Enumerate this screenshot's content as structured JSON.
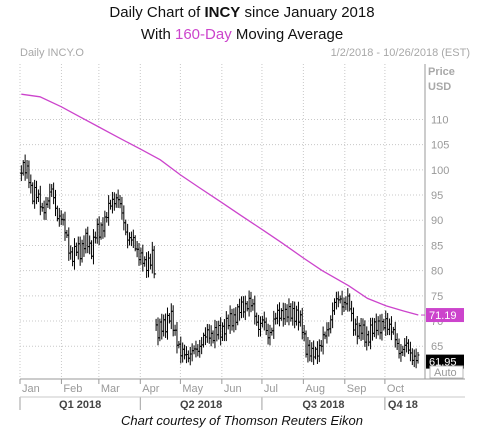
{
  "title": {
    "line1_pre": "Daily Chart of ",
    "line1_ticker": "INCY",
    "line1_post": " since January 2018",
    "line2_pre": "With ",
    "line2_highlight": "160-Day",
    "line2_post": " Moving Average"
  },
  "credit": "Chart courtesy of Thomson Reuters Eikon",
  "chart_data": {
    "type": "ohlc",
    "chart_label": "Daily INCY.O",
    "date_range": "1/2/2018 - 10/26/2018 (EST)",
    "axis_title": [
      "Price",
      "USD"
    ],
    "y_ticks": [
      110,
      105,
      100,
      95,
      90,
      85,
      80,
      75,
      70,
      65
    ],
    "ylim": [
      58.5,
      121
    ],
    "month_labels": [
      "Jan",
      "Feb",
      "Mar",
      "Apr",
      "May",
      "Jun",
      "Jul",
      "Aug",
      "Sep",
      "Oct"
    ],
    "quarter_labels": [
      "Q1 2018",
      "Q2 2018",
      "Q3 2018",
      "Q4 18"
    ],
    "auto_label": "Auto",
    "grid": true,
    "colors": {
      "price": "#000000",
      "moving_average": "#cc44cc",
      "grid": "#c8c8c8",
      "axis_text": "#999999"
    },
    "series": [
      {
        "name": "Daily INCY.O",
        "last_label": "61.95",
        "points": [
          [
            "2018-01-02",
            101
          ],
          [
            "2018-01-05",
            100
          ],
          [
            "2018-01-08",
            98
          ],
          [
            "2018-01-10",
            95
          ],
          [
            "2018-01-12",
            96
          ],
          [
            "2018-01-16",
            93
          ],
          [
            "2018-01-18",
            92
          ],
          [
            "2018-01-22",
            94
          ],
          [
            "2018-01-25",
            96
          ],
          [
            "2018-01-29",
            91
          ],
          [
            "2018-02-01",
            90
          ],
          [
            "2018-02-05",
            87
          ],
          [
            "2018-02-07",
            84
          ],
          [
            "2018-02-09",
            82
          ],
          [
            "2018-02-13",
            85
          ],
          [
            "2018-02-15",
            84
          ],
          [
            "2018-02-20",
            86
          ],
          [
            "2018-02-23",
            84
          ],
          [
            "2018-02-27",
            88
          ],
          [
            "2018-03-01",
            87
          ],
          [
            "2018-03-05",
            90
          ],
          [
            "2018-03-08",
            92
          ],
          [
            "2018-03-12",
            94
          ],
          [
            "2018-03-15",
            95
          ],
          [
            "2018-03-19",
            90
          ],
          [
            "2018-03-22",
            87
          ],
          [
            "2018-03-26",
            86
          ],
          [
            "2018-03-29",
            84
          ],
          [
            "2018-04-02",
            83
          ],
          [
            "2018-04-05",
            80
          ],
          [
            "2018-04-09",
            83
          ],
          [
            "2018-04-11",
            84
          ],
          [
            "2018-04-13",
            66
          ],
          [
            "2018-04-16",
            69
          ],
          [
            "2018-04-18",
            70
          ],
          [
            "2018-04-20",
            69
          ],
          [
            "2018-04-24",
            71
          ],
          [
            "2018-04-27",
            68
          ],
          [
            "2018-05-01",
            63
          ],
          [
            "2018-05-04",
            64
          ],
          [
            "2018-05-08",
            63
          ],
          [
            "2018-05-11",
            64
          ],
          [
            "2018-05-15",
            65
          ],
          [
            "2018-05-18",
            66
          ],
          [
            "2018-05-22",
            68
          ],
          [
            "2018-05-25",
            67
          ],
          [
            "2018-05-30",
            68
          ],
          [
            "2018-06-04",
            69
          ],
          [
            "2018-06-07",
            70
          ],
          [
            "2018-06-11",
            71
          ],
          [
            "2018-06-14",
            72
          ],
          [
            "2018-06-18",
            73
          ],
          [
            "2018-06-21",
            74
          ],
          [
            "2018-06-25",
            72
          ],
          [
            "2018-06-28",
            69
          ],
          [
            "2018-07-02",
            70
          ],
          [
            "2018-07-05",
            67
          ],
          [
            "2018-07-09",
            69
          ],
          [
            "2018-07-12",
            71
          ],
          [
            "2018-07-16",
            72
          ],
          [
            "2018-07-19",
            71
          ],
          [
            "2018-07-24",
            72
          ],
          [
            "2018-07-27",
            71
          ],
          [
            "2018-07-31",
            69
          ],
          [
            "2018-08-03",
            65
          ],
          [
            "2018-08-07",
            63
          ],
          [
            "2018-08-10",
            64
          ],
          [
            "2018-08-14",
            65
          ],
          [
            "2018-08-17",
            67
          ],
          [
            "2018-08-21",
            70
          ],
          [
            "2018-08-24",
            73
          ],
          [
            "2018-08-28",
            75
          ],
          [
            "2018-08-31",
            73
          ],
          [
            "2018-09-04",
            74
          ],
          [
            "2018-09-07",
            70
          ],
          [
            "2018-09-11",
            67
          ],
          [
            "2018-09-14",
            69
          ],
          [
            "2018-09-18",
            66
          ],
          [
            "2018-09-21",
            68
          ],
          [
            "2018-09-25",
            70
          ],
          [
            "2018-09-28",
            68
          ],
          [
            "2018-10-02",
            70
          ],
          [
            "2018-10-05",
            69
          ],
          [
            "2018-10-09",
            66
          ],
          [
            "2018-10-12",
            64
          ],
          [
            "2018-10-17",
            65
          ],
          [
            "2018-10-22",
            63
          ],
          [
            "2018-10-26",
            61.95
          ]
        ]
      },
      {
        "name": "160-Day Moving Average",
        "last_label": "71.19",
        "points": [
          [
            "2018-01-02",
            115
          ],
          [
            "2018-01-16",
            114.5
          ],
          [
            "2018-02-01",
            112.5
          ],
          [
            "2018-02-15",
            110.5
          ],
          [
            "2018-03-01",
            108.5
          ],
          [
            "2018-03-15",
            106.5
          ],
          [
            "2018-04-02",
            104
          ],
          [
            "2018-04-16",
            102
          ],
          [
            "2018-05-01",
            99
          ],
          [
            "2018-05-15",
            96.5
          ],
          [
            "2018-06-01",
            93.5
          ],
          [
            "2018-06-15",
            91
          ],
          [
            "2018-07-02",
            88
          ],
          [
            "2018-07-16",
            85.5
          ],
          [
            "2018-08-01",
            82.5
          ],
          [
            "2018-08-15",
            80
          ],
          [
            "2018-09-04",
            77
          ],
          [
            "2018-09-18",
            74.5
          ],
          [
            "2018-10-02",
            73
          ],
          [
            "2018-10-15",
            72
          ],
          [
            "2018-10-26",
            71.19
          ]
        ]
      }
    ]
  }
}
